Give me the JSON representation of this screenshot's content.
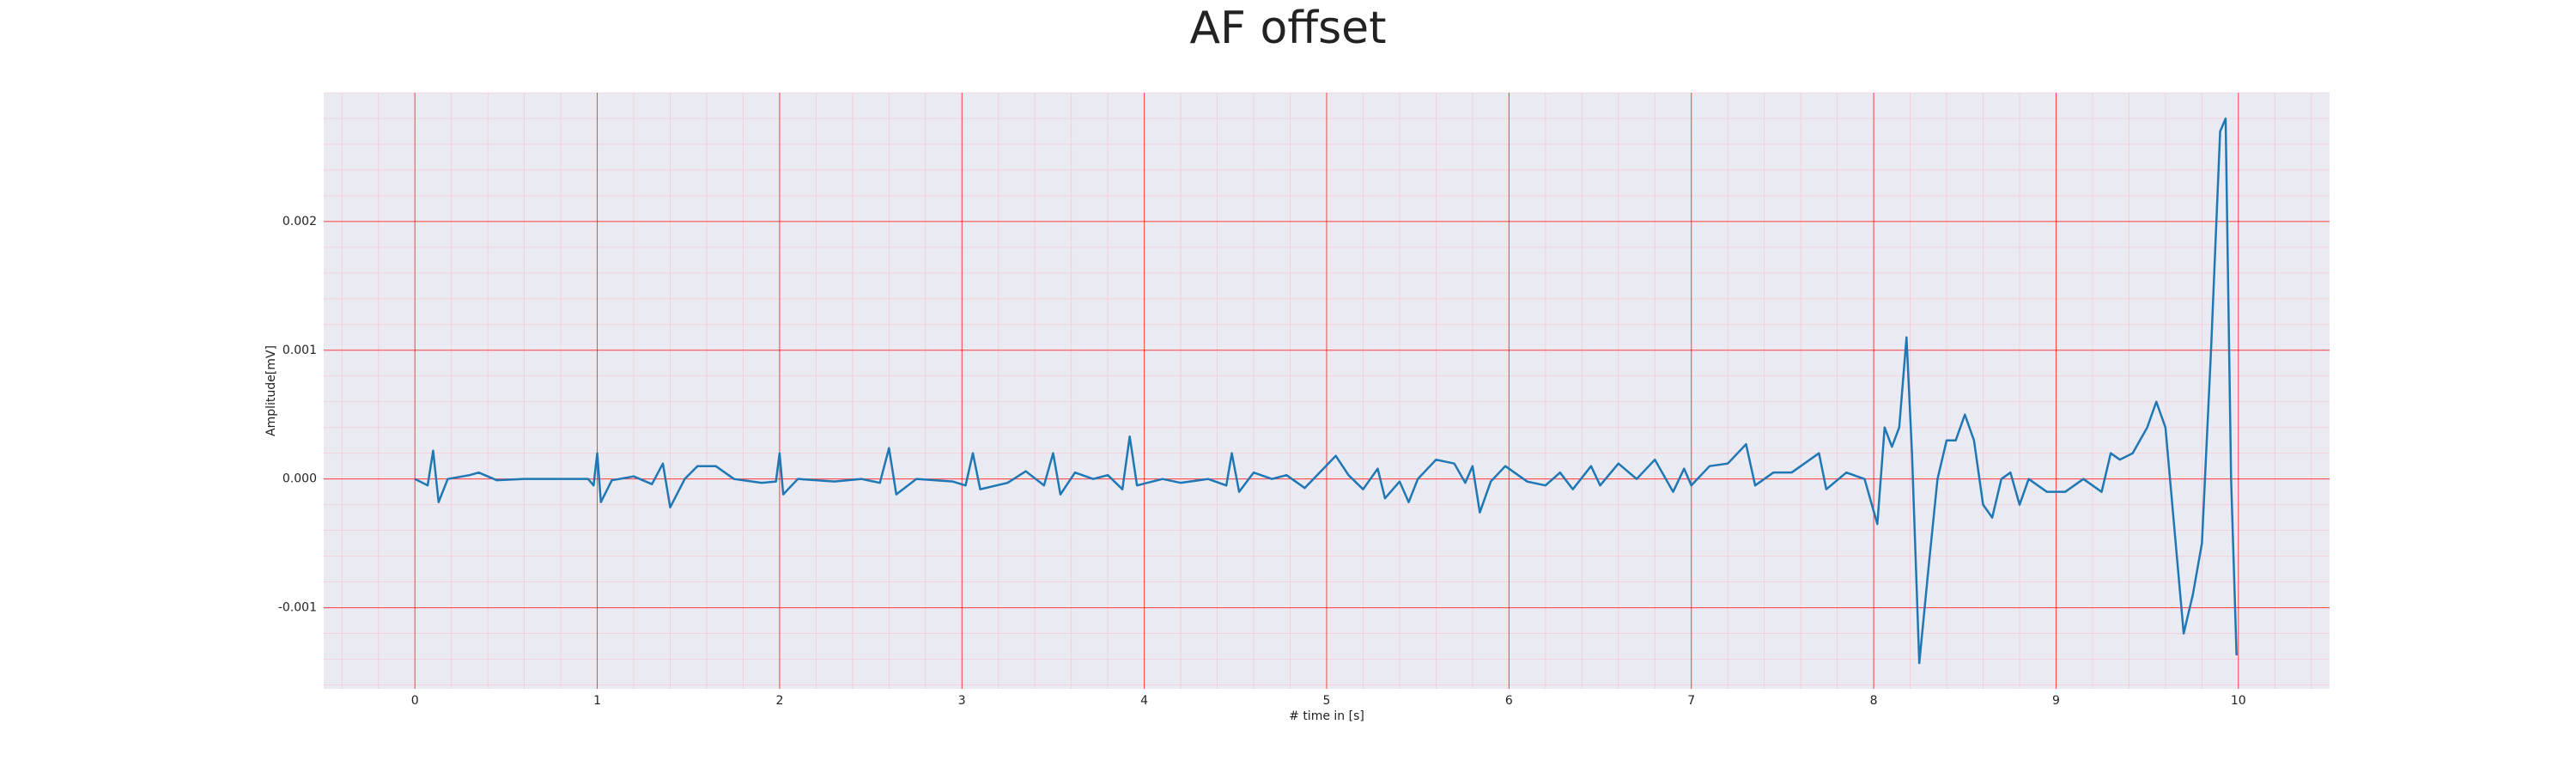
{
  "chart_data": {
    "type": "line",
    "title": "AF offset",
    "xlabel": "# time in [s]",
    "ylabel": "Amplitude[mV]",
    "xlim": [
      -0.5,
      10.5
    ],
    "ylim": [
      -0.00163,
      0.003
    ],
    "xticks": [
      0,
      1,
      2,
      3,
      4,
      5,
      6,
      7,
      8,
      9,
      10
    ],
    "yticks": [
      -0.001,
      {
        "value": 0,
        "label": "0.000"
      },
      0.001,
      0.002
    ],
    "xminorticks": [
      -0.4,
      -0.2,
      0,
      0.2,
      0.4,
      0.6,
      0.8,
      1,
      1.2,
      1.4,
      1.6,
      1.8,
      2,
      2.2,
      2.4,
      2.6,
      2.8,
      3,
      3.2,
      3.4,
      3.6,
      3.8,
      4,
      4.2,
      4.4,
      4.6,
      4.8,
      5,
      5.2,
      5.4,
      5.6,
      5.8,
      6,
      6.2,
      6.4,
      6.6,
      6.8,
      7,
      7.2,
      7.4,
      7.6,
      7.8,
      8,
      8.2,
      8.4,
      8.6,
      8.8,
      9,
      9.2,
      9.4,
      9.6,
      9.8,
      10,
      10.2,
      10.4
    ],
    "yminorticks": [
      -0.0016,
      -0.0014,
      -0.0012,
      -0.001,
      -0.0008,
      -0.0006,
      -0.0004,
      -0.0002,
      0,
      0.0002,
      0.0004,
      0.0006,
      0.0008,
      0.001,
      0.0012,
      0.0014,
      0.0016,
      0.0018,
      0.002,
      0.0022,
      0.0024,
      0.0026,
      0.0028,
      0.003
    ],
    "grid": true,
    "grid_color": "#ff0000",
    "minor_grid_color": "#ffb6c1",
    "background": "#eaeaf2",
    "series": [
      {
        "name": "AF offset",
        "color": "#1f77b4",
        "x": [
          0,
          0.07,
          0.1,
          0.13,
          0.18,
          0.3,
          0.35,
          0.45,
          0.6,
          0.8,
          0.95,
          0.98,
          1.0,
          1.02,
          1.08,
          1.2,
          1.3,
          1.36,
          1.4,
          1.48,
          1.55,
          1.65,
          1.75,
          1.9,
          1.98,
          2.0,
          2.02,
          2.1,
          2.3,
          2.45,
          2.55,
          2.6,
          2.64,
          2.75,
          2.95,
          3.02,
          3.06,
          3.1,
          3.25,
          3.35,
          3.45,
          3.5,
          3.54,
          3.62,
          3.72,
          3.8,
          3.88,
          3.92,
          3.96,
          4.1,
          4.2,
          4.35,
          4.45,
          4.48,
          4.52,
          4.6,
          4.7,
          4.78,
          4.88,
          5.05,
          5.12,
          5.2,
          5.28,
          5.32,
          5.4,
          5.45,
          5.5,
          5.6,
          5.7,
          5.76,
          5.8,
          5.84,
          5.9,
          5.98,
          6.1,
          6.2,
          6.28,
          6.35,
          6.45,
          6.5,
          6.6,
          6.7,
          6.8,
          6.9,
          6.96,
          7.0,
          7.1,
          7.2,
          7.3,
          7.35,
          7.45,
          7.55,
          7.7,
          7.74,
          7.85,
          7.95,
          8.02,
          8.06,
          8.1,
          8.14,
          8.18,
          8.21,
          8.25,
          8.3,
          8.35,
          8.4,
          8.45,
          8.5,
          8.55,
          8.6,
          8.65,
          8.7,
          8.75,
          8.8,
          8.85,
          8.95,
          9.05,
          9.15,
          9.25,
          9.3,
          9.35,
          9.42,
          9.5,
          9.55,
          9.6,
          9.7,
          9.75,
          9.8,
          9.85,
          9.9,
          9.93,
          9.96,
          9.99
        ],
        "values": [
          0,
          -5e-05,
          0.00022,
          -0.00018,
          0,
          3e-05,
          5e-05,
          -1e-05,
          0,
          0,
          0,
          -5e-05,
          0.0002,
          -0.00018,
          -1e-05,
          2e-05,
          -4e-05,
          0.00012,
          -0.00022,
          0,
          0.0001,
          0.0001,
          0,
          -3e-05,
          -2e-05,
          0.0002,
          -0.00012,
          0,
          -2e-05,
          0,
          -3e-05,
          0.00024,
          -0.00012,
          0,
          -2e-05,
          -5e-05,
          0.0002,
          -8e-05,
          -3e-05,
          6e-05,
          -5e-05,
          0.0002,
          -0.00012,
          5e-05,
          0,
          3e-05,
          -8e-05,
          0.00033,
          -5e-05,
          0,
          -3e-05,
          0,
          -5e-05,
          0.0002,
          -0.0001,
          5e-05,
          0,
          3e-05,
          -7e-05,
          0.00018,
          3e-05,
          -8e-05,
          8e-05,
          -0.00015,
          -2e-05,
          -0.00018,
          0,
          0.00015,
          0.00012,
          -3e-05,
          0.0001,
          -0.00026,
          -2e-05,
          0.0001,
          -2e-05,
          -5e-05,
          5e-05,
          -8e-05,
          0.0001,
          -5e-05,
          0.00012,
          0,
          0.00015,
          -0.0001,
          8e-05,
          -5e-05,
          0.0001,
          0.00012,
          0.00027,
          -5e-05,
          5e-05,
          5e-05,
          0.0002,
          -8e-05,
          5e-05,
          0,
          -0.00035,
          0.0004,
          0.00025,
          0.0004,
          0.0011,
          0.0002,
          -0.00143,
          -0.0007,
          0,
          0.0003,
          0.0003,
          0.0005,
          0.0003,
          -0.0002,
          -0.0003,
          0,
          5e-05,
          -0.0002,
          0,
          -0.0001,
          -0.0001,
          0,
          -0.0001,
          0.0002,
          0.00015,
          0.0002,
          0.0004,
          0.0006,
          0.0004,
          -0.0012,
          -0.0009,
          -0.0005,
          0.001,
          0.0027,
          0.0028,
          0,
          -0.00137
        ]
      }
    ]
  }
}
